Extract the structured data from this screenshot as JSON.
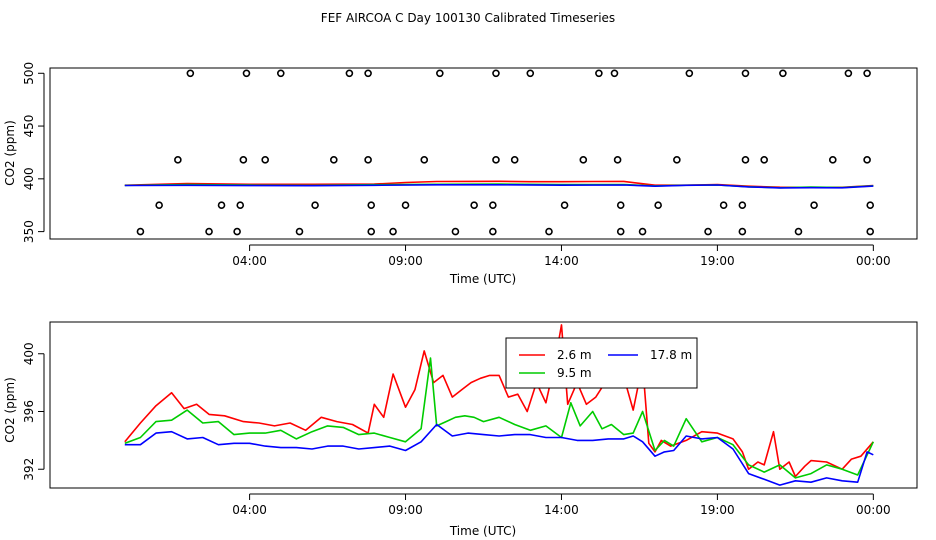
{
  "title": "FEF AIRCOA C  Day 100130  Calibrated Timeseries",
  "colors": {
    "red": "#ff0000",
    "green": "#00cc00",
    "blue": "#0000ff",
    "black": "#000000"
  },
  "chart_data": [
    {
      "type": "scatter+line",
      "xlabel": "Time (UTC)",
      "ylabel": "CO2 (ppm)",
      "x_unit": "hours since 00:00 UTC",
      "xlim": [
        -2.4,
        25.4
      ],
      "ylim": [
        343,
        505
      ],
      "xticks": [
        4,
        9,
        14,
        19,
        24
      ],
      "xtick_labels": [
        "04:00",
        "09:00",
        "14:00",
        "19:00",
        "00:00"
      ],
      "yticks": [
        350,
        400,
        450,
        500
      ],
      "ytick_labels": [
        "350",
        "400",
        "450",
        "500"
      ],
      "open_points": [
        {
          "x": 0.5,
          "y": 350
        },
        {
          "x": 1.1,
          "y": 375
        },
        {
          "x": 1.7,
          "y": 418
        },
        {
          "x": 2.1,
          "y": 500
        },
        {
          "x": 2.7,
          "y": 350
        },
        {
          "x": 3.1,
          "y": 375
        },
        {
          "x": 3.6,
          "y": 350
        },
        {
          "x": 3.7,
          "y": 375
        },
        {
          "x": 3.8,
          "y": 418
        },
        {
          "x": 3.9,
          "y": 500
        },
        {
          "x": 4.5,
          "y": 418
        },
        {
          "x": 5.0,
          "y": 500
        },
        {
          "x": 5.6,
          "y": 350
        },
        {
          "x": 6.1,
          "y": 375
        },
        {
          "x": 6.7,
          "y": 418
        },
        {
          "x": 7.2,
          "y": 500
        },
        {
          "x": 7.8,
          "y": 500
        },
        {
          "x": 7.8,
          "y": 418
        },
        {
          "x": 7.9,
          "y": 375
        },
        {
          "x": 7.9,
          "y": 350
        },
        {
          "x": 8.6,
          "y": 350
        },
        {
          "x": 9.0,
          "y": 375
        },
        {
          "x": 9.6,
          "y": 418
        },
        {
          "x": 10.1,
          "y": 500
        },
        {
          "x": 10.6,
          "y": 350
        },
        {
          "x": 11.2,
          "y": 375
        },
        {
          "x": 11.8,
          "y": 350
        },
        {
          "x": 11.8,
          "y": 375
        },
        {
          "x": 11.9,
          "y": 418
        },
        {
          "x": 11.9,
          "y": 500
        },
        {
          "x": 12.5,
          "y": 418
        },
        {
          "x": 13.0,
          "y": 500
        },
        {
          "x": 13.6,
          "y": 350
        },
        {
          "x": 14.1,
          "y": 375
        },
        {
          "x": 14.7,
          "y": 418
        },
        {
          "x": 15.2,
          "y": 500
        },
        {
          "x": 15.7,
          "y": 500
        },
        {
          "x": 15.8,
          "y": 418
        },
        {
          "x": 15.9,
          "y": 375
        },
        {
          "x": 15.9,
          "y": 350
        },
        {
          "x": 16.6,
          "y": 350
        },
        {
          "x": 17.1,
          "y": 375
        },
        {
          "x": 17.7,
          "y": 418
        },
        {
          "x": 18.1,
          "y": 500
        },
        {
          "x": 18.7,
          "y": 350
        },
        {
          "x": 19.2,
          "y": 375
        },
        {
          "x": 19.8,
          "y": 350
        },
        {
          "x": 19.8,
          "y": 375
        },
        {
          "x": 19.9,
          "y": 418
        },
        {
          "x": 19.9,
          "y": 500
        },
        {
          "x": 20.5,
          "y": 418
        },
        {
          "x": 21.1,
          "y": 500
        },
        {
          "x": 21.6,
          "y": 350
        },
        {
          "x": 22.1,
          "y": 375
        },
        {
          "x": 22.7,
          "y": 418
        },
        {
          "x": 23.2,
          "y": 500
        },
        {
          "x": 23.8,
          "y": 500
        },
        {
          "x": 23.8,
          "y": 418
        },
        {
          "x": 23.9,
          "y": 375
        },
        {
          "x": 23.9,
          "y": 350
        }
      ],
      "series": [
        {
          "name": "2.6 m",
          "color": "#ff0000",
          "x": [
            0,
            2,
            4,
            6,
            8,
            9,
            10,
            11,
            12,
            13,
            14,
            15,
            16,
            17,
            18,
            19,
            20,
            21,
            22,
            23,
            24
          ],
          "values": [
            394,
            395.6,
            394.8,
            394.8,
            395,
            396.5,
            397.5,
            397.6,
            397.7,
            397.3,
            397.3,
            397.5,
            397.6,
            394,
            394,
            394.5,
            393,
            392.1,
            392,
            392,
            393.6
          ]
        },
        {
          "name": "9.5 m",
          "color": "#00cc00",
          "x": [
            0,
            2,
            4,
            6,
            8,
            10,
            12,
            14,
            16,
            17,
            18,
            19,
            20,
            21,
            22,
            23,
            24
          ],
          "values": [
            393.8,
            394.6,
            394.1,
            393.8,
            394.4,
            394.8,
            395,
            394.6,
            394.6,
            393.3,
            394,
            394.2,
            392.5,
            391.5,
            392.2,
            391.7,
            393.4
          ]
        },
        {
          "name": "17.8 m",
          "color": "#0000ff",
          "x": [
            0,
            2,
            4,
            6,
            8,
            10,
            12,
            14,
            16,
            17,
            18,
            19,
            20,
            21,
            22,
            23,
            24
          ],
          "values": [
            393.7,
            393.9,
            393.6,
            393.5,
            393.9,
            394.3,
            394.3,
            394,
            394.2,
            393,
            393.9,
            394.2,
            392.4,
            391.4,
            391.6,
            391.5,
            393.1
          ]
        }
      ]
    },
    {
      "type": "line",
      "xlabel": "Time (UTC)",
      "ylabel": "CO2 (ppm)",
      "x_unit": "hours since 00:00 UTC",
      "xlim": [
        -2.4,
        25.4
      ],
      "ylim": [
        390.7,
        402.2
      ],
      "xticks": [
        4,
        9,
        14,
        19,
        24
      ],
      "xtick_labels": [
        "04:00",
        "09:00",
        "14:00",
        "19:00",
        "00:00"
      ],
      "yticks": [
        392,
        396,
        400
      ],
      "ytick_labels": [
        "392",
        "396",
        "400"
      ],
      "legend": {
        "position": "top-center",
        "entries": [
          "2.6 m",
          "9.5 m",
          "17.8 m"
        ]
      },
      "series": [
        {
          "name": "2.6 m",
          "color": "#ff0000",
          "x": [
            0,
            0.5,
            1,
            1.5,
            1.9,
            2.3,
            2.7,
            3.2,
            3.8,
            4.3,
            4.8,
            5.3,
            5.8,
            6.3,
            6.8,
            7.3,
            7.8,
            8.0,
            8.3,
            8.6,
            9.0,
            9.3,
            9.6,
            9.9,
            10.2,
            10.5,
            10.8,
            11.1,
            11.4,
            11.7,
            12.0,
            12.3,
            12.6,
            12.9,
            13.2,
            13.5,
            13.8,
            14.0,
            14.2,
            14.5,
            14.8,
            15.1,
            15.4,
            15.7,
            16.0,
            16.3,
            16.6,
            16.8,
            17.0,
            17.2,
            17.5,
            18.0,
            18.5,
            19.0,
            19.5,
            19.8,
            20.0,
            20.3,
            20.5,
            20.8,
            21.0,
            21.3,
            21.5,
            21.8,
            22.0,
            22.5,
            23.0,
            23.3,
            23.6,
            24.0
          ],
          "values": [
            393.9,
            395.2,
            396.4,
            397.3,
            396.2,
            396.5,
            395.8,
            395.7,
            395.3,
            395.2,
            395,
            395.2,
            394.7,
            395.6,
            395.3,
            395.1,
            394.5,
            396.5,
            395.6,
            398.6,
            396.3,
            397.5,
            400.2,
            398,
            398.5,
            397,
            397.5,
            398,
            398.3,
            398.5,
            398.5,
            397,
            397.2,
            396,
            398,
            396.6,
            399.5,
            402,
            396.5,
            398,
            396.5,
            397,
            398,
            398.5,
            398.4,
            396.1,
            399.3,
            393.8,
            393.2,
            394,
            393.6,
            394,
            394.6,
            394.5,
            394.1,
            393.2,
            392,
            392.5,
            392.3,
            394.6,
            392,
            392.5,
            391.5,
            392.2,
            392.6,
            392.5,
            392,
            392.7,
            392.9,
            393.9
          ]
        },
        {
          "name": "9.5 m",
          "color": "#00cc00",
          "x": [
            0,
            0.5,
            1,
            1.5,
            2,
            2.5,
            3,
            3.5,
            4,
            4.5,
            5,
            5.5,
            6,
            6.5,
            7,
            7.5,
            8,
            8.5,
            9,
            9.5,
            9.8,
            10,
            10.3,
            10.6,
            10.9,
            11.2,
            11.5,
            12,
            12.5,
            13,
            13.5,
            14,
            14.3,
            14.6,
            15,
            15.3,
            15.6,
            16,
            16.3,
            16.6,
            17,
            17.3,
            17.6,
            18,
            18.5,
            19,
            19.5,
            20,
            20.5,
            21,
            21.5,
            22,
            22.5,
            23,
            23.5,
            24
          ],
          "values": [
            393.8,
            394.2,
            395.3,
            395.4,
            396.1,
            395.2,
            395.3,
            394.4,
            394.5,
            394.5,
            394.7,
            394.1,
            394.6,
            395,
            394.9,
            394.4,
            394.5,
            394.2,
            393.9,
            394.8,
            399.7,
            395,
            395.3,
            395.6,
            395.7,
            395.6,
            395.3,
            395.6,
            395.1,
            394.7,
            395,
            394.2,
            396.6,
            395,
            396,
            394.8,
            395.1,
            394.4,
            394.5,
            396,
            393.3,
            394,
            393.6,
            395.5,
            393.9,
            394.2,
            393.7,
            392.3,
            391.8,
            392.3,
            391.4,
            391.7,
            392.3,
            392,
            391.6,
            393.9
          ]
        },
        {
          "name": "17.8 m",
          "color": "#0000ff",
          "x": [
            0,
            0.5,
            1,
            1.5,
            2,
            2.5,
            3,
            3.5,
            4,
            4.5,
            5,
            5.5,
            6,
            6.5,
            7,
            7.5,
            8,
            8.5,
            9,
            9.5,
            10,
            10.5,
            11,
            11.5,
            12,
            12.5,
            13,
            13.5,
            14,
            14.5,
            15,
            15.5,
            16,
            16.3,
            16.6,
            17,
            17.3,
            17.6,
            18,
            18.5,
            19,
            19.5,
            20,
            20.5,
            21,
            21.5,
            22,
            22.5,
            23,
            23.5,
            23.8,
            24
          ],
          "values": [
            393.7,
            393.7,
            394.5,
            394.6,
            394.1,
            394.2,
            393.7,
            393.8,
            393.8,
            393.6,
            393.5,
            393.5,
            393.4,
            393.6,
            393.6,
            393.4,
            393.5,
            393.6,
            393.3,
            393.9,
            395.1,
            394.3,
            394.5,
            394.4,
            394.3,
            394.4,
            394.4,
            394.2,
            394.2,
            394,
            394,
            394.1,
            394.1,
            394.3,
            393.9,
            392.9,
            393.2,
            393.3,
            394.3,
            394.1,
            394.2,
            393.4,
            391.7,
            391.3,
            390.9,
            391.2,
            391.1,
            391.4,
            391.2,
            391.1,
            393.2,
            393
          ]
        }
      ]
    }
  ]
}
